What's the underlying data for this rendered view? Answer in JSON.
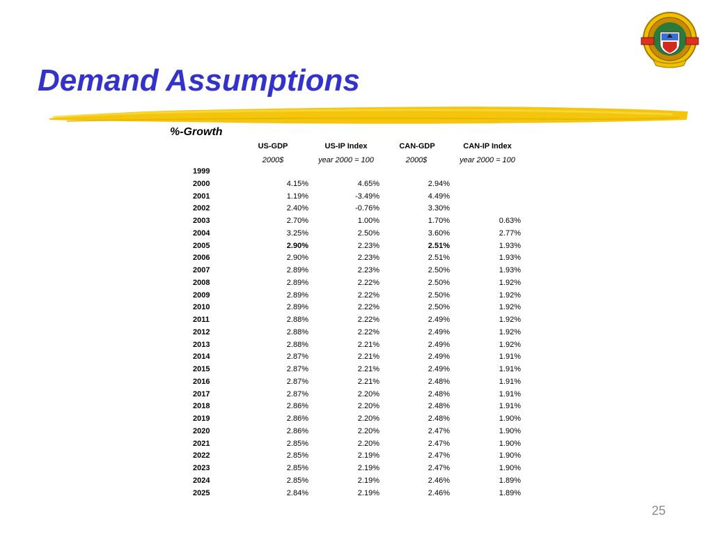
{
  "slide": {
    "title": "Demand Assumptions",
    "subtitle": "%-Growth",
    "page_number": "25",
    "title_color": "#3333cc",
    "brush_color": "#f2c200"
  },
  "logo": {
    "icon": "seal-emblem-icon"
  },
  "table": {
    "headers": [
      "US-GDP",
      "US-IP Index",
      "CAN-GDP",
      "CAN-IP Index"
    ],
    "units": [
      "2000$",
      "year 2000 = 100",
      "2000$",
      "year 2000 = 100"
    ],
    "rows": [
      {
        "year": "1999",
        "values": [
          "",
          "",
          "",
          ""
        ]
      },
      {
        "year": "2000",
        "values": [
          "4.15%",
          "4.65%",
          "2.94%",
          ""
        ]
      },
      {
        "year": "2001",
        "values": [
          "1.19%",
          "-3.49%",
          "4.49%",
          ""
        ]
      },
      {
        "year": "2002",
        "values": [
          "2.40%",
          "-0.76%",
          "3.30%",
          ""
        ]
      },
      {
        "year": "2003",
        "values": [
          "2.70%",
          "1.00%",
          "1.70%",
          "0.63%"
        ]
      },
      {
        "year": "2004",
        "values": [
          "3.25%",
          "2.50%",
          "3.60%",
          "2.77%"
        ]
      },
      {
        "year": "2005",
        "values": [
          "2.90%",
          "2.23%",
          "2.51%",
          "1.93%"
        ],
        "bold_cols": [
          0,
          2
        ]
      },
      {
        "year": "2006",
        "values": [
          "2.90%",
          "2.23%",
          "2.51%",
          "1.93%"
        ]
      },
      {
        "year": "2007",
        "values": [
          "2.89%",
          "2.23%",
          "2.50%",
          "1.93%"
        ]
      },
      {
        "year": "2008",
        "values": [
          "2.89%",
          "2.22%",
          "2.50%",
          "1.92%"
        ]
      },
      {
        "year": "2009",
        "values": [
          "2.89%",
          "2.22%",
          "2.50%",
          "1.92%"
        ]
      },
      {
        "year": "2010",
        "values": [
          "2.89%",
          "2.22%",
          "2.50%",
          "1.92%"
        ]
      },
      {
        "year": "2011",
        "values": [
          "2.88%",
          "2.22%",
          "2.49%",
          "1.92%"
        ]
      },
      {
        "year": "2012",
        "values": [
          "2.88%",
          "2.22%",
          "2.49%",
          "1.92%"
        ]
      },
      {
        "year": "2013",
        "values": [
          "2.88%",
          "2.21%",
          "2.49%",
          "1.92%"
        ]
      },
      {
        "year": "2014",
        "values": [
          "2.87%",
          "2.21%",
          "2.49%",
          "1.91%"
        ]
      },
      {
        "year": "2015",
        "values": [
          "2.87%",
          "2.21%",
          "2.49%",
          "1.91%"
        ]
      },
      {
        "year": "2016",
        "values": [
          "2.87%",
          "2.21%",
          "2.48%",
          "1.91%"
        ]
      },
      {
        "year": "2017",
        "values": [
          "2.87%",
          "2.20%",
          "2.48%",
          "1.91%"
        ]
      },
      {
        "year": "2018",
        "values": [
          "2.86%",
          "2.20%",
          "2.48%",
          "1.91%"
        ]
      },
      {
        "year": "2019",
        "values": [
          "2.86%",
          "2.20%",
          "2.48%",
          "1.90%"
        ]
      },
      {
        "year": "2020",
        "values": [
          "2.86%",
          "2.20%",
          "2.47%",
          "1.90%"
        ]
      },
      {
        "year": "2021",
        "values": [
          "2.85%",
          "2.20%",
          "2.47%",
          "1.90%"
        ]
      },
      {
        "year": "2022",
        "values": [
          "2.85%",
          "2.19%",
          "2.47%",
          "1.90%"
        ]
      },
      {
        "year": "2023",
        "values": [
          "2.85%",
          "2.19%",
          "2.47%",
          "1.90%"
        ]
      },
      {
        "year": "2024",
        "values": [
          "2.85%",
          "2.19%",
          "2.46%",
          "1.89%"
        ]
      },
      {
        "year": "2025",
        "values": [
          "2.84%",
          "2.19%",
          "2.46%",
          "1.89%"
        ]
      }
    ]
  }
}
